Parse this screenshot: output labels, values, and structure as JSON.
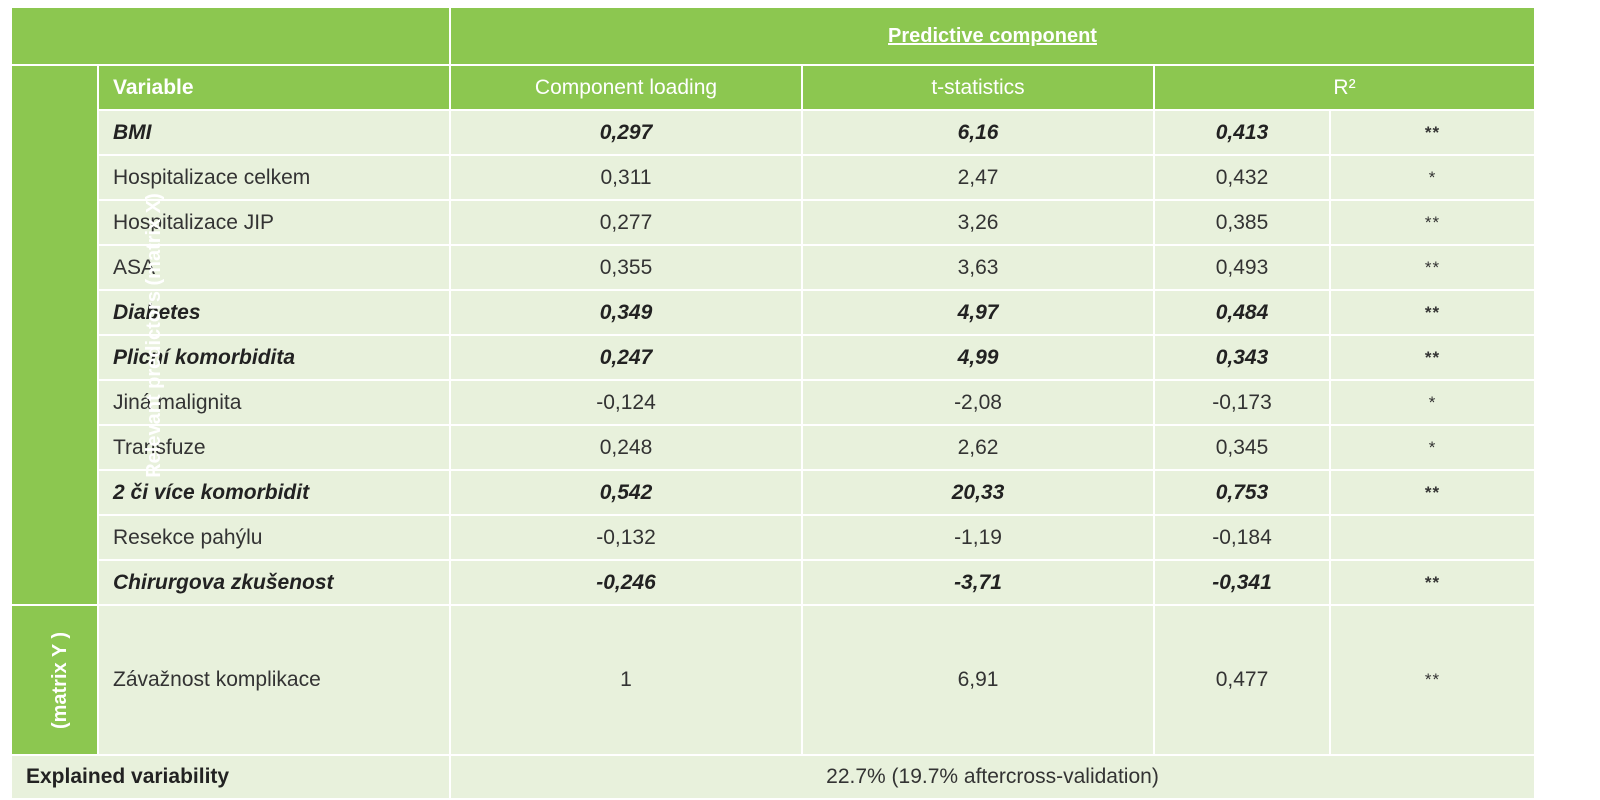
{
  "header": {
    "predictive_component": "Predictive component"
  },
  "columns": {
    "variable": "Variable",
    "loading": "Component loading",
    "tstat": "t-statistics",
    "r2": "R²"
  },
  "side_labels": {
    "x": "Relevant predictors (matrix X)",
    "y": "(matrix Y )"
  },
  "rows": [
    {
      "variable": "BMI",
      "loading": "0,297",
      "tstat": "6,16",
      "r2": "0,413",
      "sig": "**"
    },
    {
      "variable": "Hospitalizace celkem",
      "loading": "0,311",
      "tstat": "2,47",
      "r2": "0,432",
      "sig": "*"
    },
    {
      "variable": "Hospitalizace JIP",
      "loading": "0,277",
      "tstat": "3,26",
      "r2": "0,385",
      "sig": "**"
    },
    {
      "variable": "ASA",
      "loading": "0,355",
      "tstat": "3,63",
      "r2": "0,493",
      "sig": "**"
    },
    {
      "variable": "Diabetes",
      "loading": "0,349",
      "tstat": "4,97",
      "r2": "0,484",
      "sig": "**"
    },
    {
      "variable": "Plicní komorbidita",
      "loading": "0,247",
      "tstat": "4,99",
      "r2": "0,343",
      "sig": "**"
    },
    {
      "variable": "Jiná malignita",
      "loading": "-0,124",
      "tstat": "-2,08",
      "r2": "-0,173",
      "sig": "*"
    },
    {
      "variable": "Transfuze",
      "loading": "0,248",
      "tstat": "2,62",
      "r2": "0,345",
      "sig": "*"
    },
    {
      "variable": "2 či více komorbidit",
      "loading": "0,542",
      "tstat": "20,33",
      "r2": "0,753",
      "sig": "**"
    },
    {
      "variable": "Resekce pahýlu",
      "loading": "-0,132",
      "tstat": "-1,19",
      "r2": "-0,184",
      "sig": ""
    },
    {
      "variable": "Chirurgova zkušenost",
      "loading": "-0,246",
      "tstat": "-3,71",
      "r2": "-0,341",
      "sig": "**"
    }
  ],
  "y_row": {
    "variable": "Závažnost komplikace",
    "loading": "1",
    "tstat": "6,91",
    "r2": "0,477",
    "sig": "**"
  },
  "footer": {
    "label": "Explained variability",
    "value": "22.7% (19.7% aftercross-validation)"
  }
}
